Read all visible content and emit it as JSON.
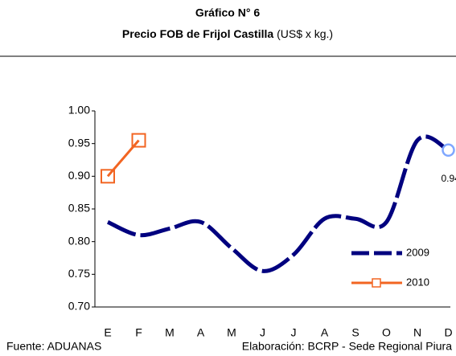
{
  "chart_data": {
    "type": "line",
    "title": "Gráfico N° 6",
    "subtitle_bold": "Precio FOB de Frijol Castilla",
    "subtitle_normal": " (US$ x kg.)",
    "categories": [
      "E",
      "F",
      "M",
      "A",
      "M",
      "J",
      "J",
      "A",
      "S",
      "O",
      "N",
      "D"
    ],
    "series": [
      {
        "name": "2009",
        "color": "#00007f",
        "values": [
          0.83,
          0.81,
          0.82,
          0.83,
          0.79,
          0.755,
          0.78,
          0.835,
          0.835,
          0.83,
          0.955,
          0.94
        ]
      },
      {
        "name": "2010",
        "color": "#f26522",
        "values": [
          0.9,
          0.955,
          null,
          null,
          null,
          null,
          null,
          null,
          null,
          null,
          null,
          null
        ]
      }
    ],
    "ylim": [
      0.7,
      1.0
    ],
    "yticks": [
      {
        "value": 0.7,
        "label": "0.70"
      },
      0.75,
      {
        "value": 0.8,
        "label": "0.80"
      },
      0.85,
      {
        "value": 0.9,
        "label": "0.90"
      },
      0.95,
      {
        "value": 1.0,
        "label": "1.00"
      }
    ],
    "footer_left": "Fuente: ADUANAS",
    "footer_right": "Elaboración: BCRP - Sede Regional Piura"
  }
}
